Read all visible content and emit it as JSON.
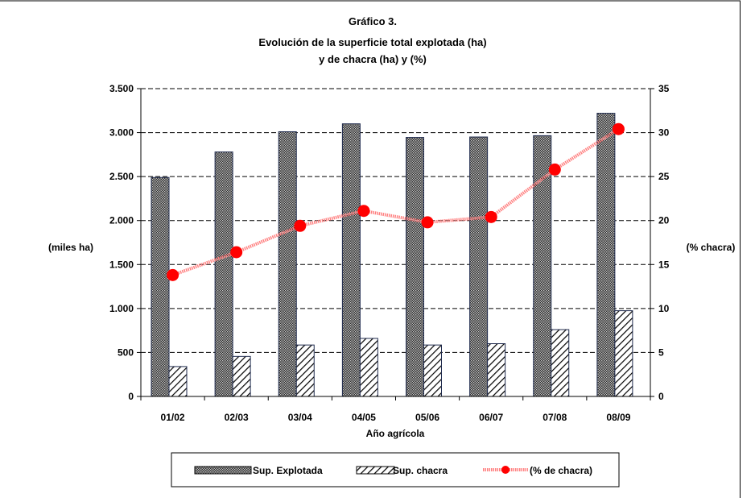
{
  "chart_data": {
    "type": "bar",
    "title": [
      "Gráfico 3.",
      "Evolución de la superficie total explotada (ha)",
      "y de chacra (ha) y (%)"
    ],
    "xlabel": "Año agrícola",
    "ylabel": "(miles ha)",
    "y2label": "(% chacra)",
    "categories": [
      "01/02",
      "02/03",
      "03/04",
      "04/05",
      "05/06",
      "06/07",
      "07/08",
      "08/09"
    ],
    "ylim": [
      0,
      3500
    ],
    "yticks": [
      0,
      500,
      1000,
      1500,
      2000,
      2500,
      3000,
      3500
    ],
    "ytick_labels": [
      "0",
      "500",
      "1.000",
      "1.500",
      "2.000",
      "2.500",
      "3.000",
      "3.500"
    ],
    "y2lim": [
      0,
      35
    ],
    "y2ticks": [
      0,
      5,
      10,
      15,
      20,
      25,
      30,
      35
    ],
    "y2tick_labels": [
      "0",
      "5",
      "10",
      "15",
      "20",
      "25",
      "30",
      "35"
    ],
    "grid": "horizontal-dashed",
    "legend_position": "bottom",
    "series": [
      {
        "name": "Sup. Explotada",
        "kind": "bar",
        "axis": "left",
        "values": [
          2490,
          2780,
          3010,
          3100,
          2945,
          2950,
          2965,
          3220
        ]
      },
      {
        "name": "Sup. chacra",
        "kind": "bar",
        "axis": "left",
        "values": [
          340,
          455,
          585,
          660,
          585,
          600,
          760,
          975
        ]
      },
      {
        "name": "(% de chacra)",
        "kind": "line",
        "axis": "right",
        "color": "#ff0000",
        "values": [
          13.8,
          16.4,
          19.4,
          21.1,
          19.8,
          20.4,
          25.8,
          30.4
        ]
      }
    ]
  }
}
